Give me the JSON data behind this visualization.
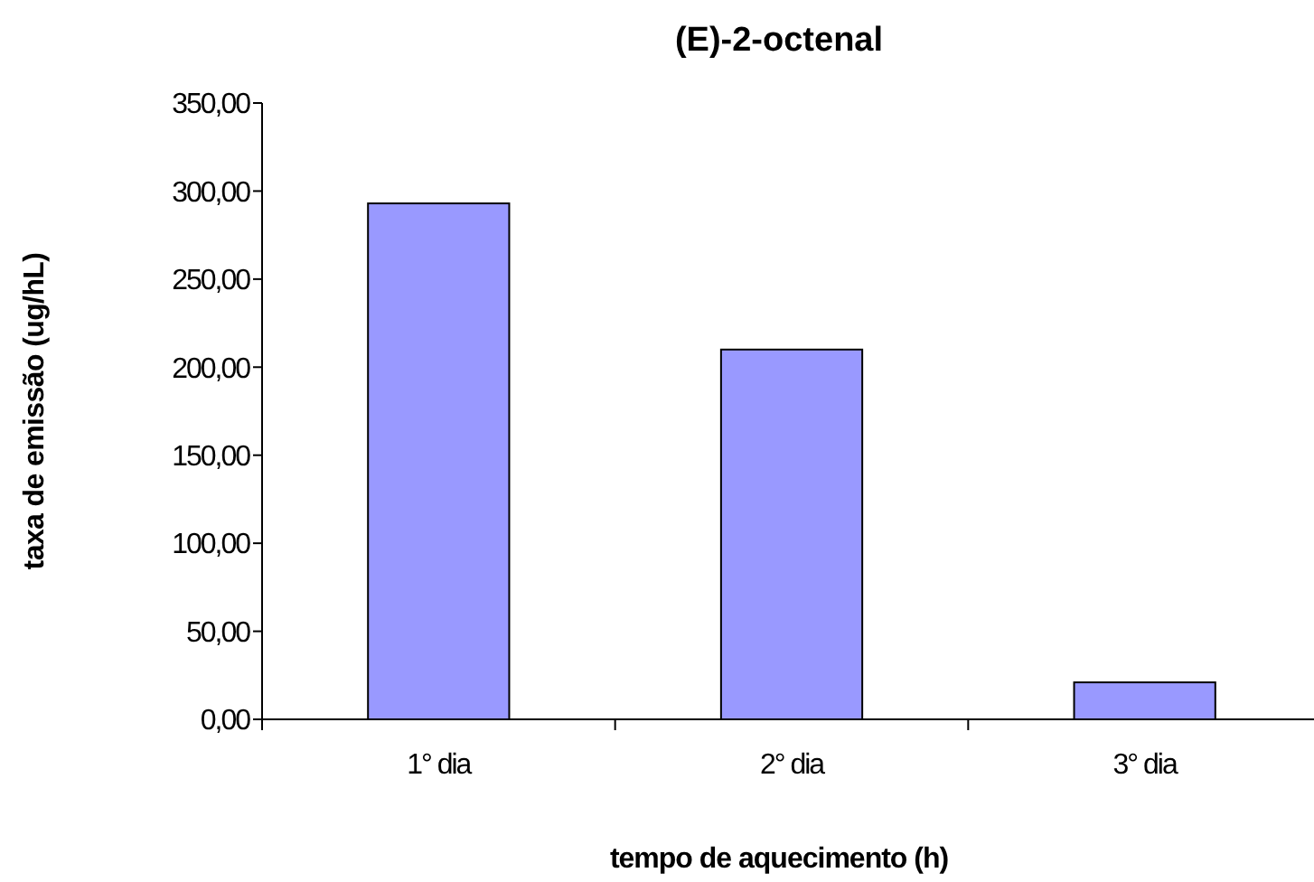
{
  "chart_data": {
    "type": "bar",
    "title": "(E)-2-octenal",
    "xlabel": "tempo de aquecimento (h)",
    "ylabel": "taxa de emissão (ug/hL)",
    "categories": [
      "1° dia",
      "2° dia",
      "3° dia"
    ],
    "values": [
      293,
      210,
      21
    ],
    "color": "#9999ff",
    "ylim": [
      0,
      350
    ],
    "yticks": [
      {
        "value": 0,
        "label": "0,00"
      },
      {
        "value": 50,
        "label": "50,00"
      },
      {
        "value": 100,
        "label": "100,00"
      },
      {
        "value": 150,
        "label": "150,00"
      },
      {
        "value": 200,
        "label": "200,00"
      },
      {
        "value": 250,
        "label": "250,00"
      },
      {
        "value": 300,
        "label": "300,00"
      },
      {
        "value": 350,
        "label": "350,00"
      }
    ],
    "grid": false
  }
}
